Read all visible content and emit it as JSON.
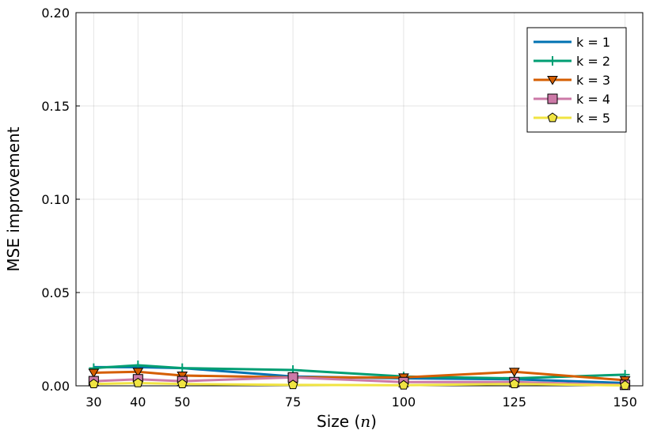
{
  "chart_data": {
    "type": "line",
    "xlabel": "Size (",
    "xlabel_var": "n",
    "xlabel_close": ")",
    "ylabel": "MSE improvement",
    "xlim": [
      26,
      154
    ],
    "ylim": [
      0,
      0.2
    ],
    "x": [
      30,
      40,
      50,
      75,
      100,
      125,
      150
    ],
    "x_ticks": [
      30,
      40,
      50,
      75,
      100,
      125,
      150
    ],
    "y_ticks": [
      0,
      0.05,
      0.1,
      0.15,
      0.2
    ],
    "y_tick_labels": [
      "0.00",
      "0.05",
      "0.10",
      "0.15",
      "0.20"
    ],
    "grid": true,
    "legend_position": "top-right",
    "series": [
      {
        "name": "k = 1",
        "color": "#0072b2",
        "marker": "none",
        "values": [
          0.01,
          0.01,
          0.0095,
          0.005,
          0.004,
          0.0035,
          0.0015
        ]
      },
      {
        "name": "k = 2",
        "color": "#009e73",
        "marker": "cross",
        "values": [
          0.0095,
          0.011,
          0.0095,
          0.0085,
          0.005,
          0.004,
          0.006
        ]
      },
      {
        "name": "k = 3",
        "color": "#d55e00",
        "marker": "triangle-down",
        "values": [
          0.007,
          0.0075,
          0.0055,
          0.0045,
          0.0045,
          0.0075,
          0.003
        ]
      },
      {
        "name": "k = 4",
        "color": "#cc79a7",
        "marker": "square",
        "values": [
          0.0025,
          0.0035,
          0.0025,
          0.0045,
          0.002,
          0.002,
          0.0005
        ]
      },
      {
        "name": "k = 5",
        "color": "#f0e442",
        "marker": "pentagon",
        "values": [
          0.001,
          0.0015,
          0.001,
          0.0005,
          0.0003,
          0.001,
          0.0002
        ]
      }
    ]
  }
}
